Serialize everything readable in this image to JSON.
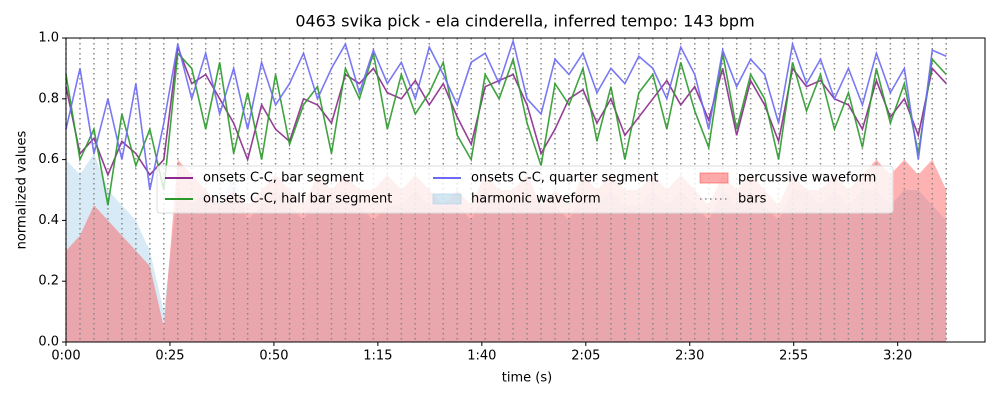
{
  "chart_data": {
    "type": "line",
    "title": "0463 svika pick - ela cinderella, inferred tempo: 143 bpm",
    "xlabel": "time (s)",
    "ylabel": "normalized values",
    "xlim": [
      0,
      221
    ],
    "ylim": [
      0,
      1
    ],
    "xticks": [
      {
        "value": 0,
        "label": "0:00"
      },
      {
        "value": 25,
        "label": "0:25"
      },
      {
        "value": 50,
        "label": "0:50"
      },
      {
        "value": 75,
        "label": "1:15"
      },
      {
        "value": 100,
        "label": "1:40"
      },
      {
        "value": 125,
        "label": "2:05"
      },
      {
        "value": 150,
        "label": "2:30"
      },
      {
        "value": 175,
        "label": "2:55"
      },
      {
        "value": 200,
        "label": "3:20"
      }
    ],
    "yticks": [
      {
        "value": 0,
        "label": "0.0"
      },
      0.2,
      0.4,
      0.6,
      0.8,
      {
        "value": 1,
        "label": "1.0"
      }
    ],
    "x": [
      0,
      3.36,
      6.72,
      10.08,
      13.44,
      16.8,
      20.16,
      23.52,
      26.88,
      30.24,
      33.6,
      36.96,
      40.32,
      43.68,
      47.04,
      50.4,
      53.76,
      57.12,
      60.48,
      63.84,
      67.2,
      70.56,
      73.92,
      77.28,
      80.64,
      84,
      87.36,
      90.72,
      94.08,
      97.44,
      100.8,
      104.16,
      107.52,
      110.88,
      114.24,
      117.6,
      120.96,
      124.32,
      127.68,
      131.04,
      134.4,
      137.76,
      141.12,
      144.48,
      147.84,
      151.2,
      154.56,
      157.92,
      161.28,
      164.64,
      168,
      171.36,
      174.72,
      178.08,
      181.44,
      184.8,
      188.16,
      191.52,
      194.88,
      198.24,
      201.6,
      204.96,
      208.32,
      211.68
    ],
    "series": [
      {
        "name": "onsets C-C, bar segment",
        "type": "line",
        "color": "#8b2a8b",
        "values": [
          0.84,
          0.62,
          0.67,
          0.55,
          0.66,
          0.62,
          0.55,
          0.6,
          0.97,
          0.85,
          0.88,
          0.8,
          0.72,
          0.6,
          0.78,
          0.7,
          0.66,
          0.8,
          0.78,
          0.72,
          0.88,
          0.85,
          0.9,
          0.82,
          0.8,
          0.86,
          0.78,
          0.85,
          0.74,
          0.65,
          0.84,
          0.86,
          0.88,
          0.78,
          0.62,
          0.7,
          0.8,
          0.83,
          0.72,
          0.8,
          0.68,
          0.74,
          0.8,
          0.86,
          0.78,
          0.84,
          0.73,
          0.9,
          0.68,
          0.86,
          0.78,
          0.66,
          0.9,
          0.84,
          0.86,
          0.8,
          0.78,
          0.7,
          0.86,
          0.74,
          0.8,
          0.68,
          0.9,
          0.85
        ]
      },
      {
        "name": "onsets C-C, half bar segment",
        "type": "line",
        "color": "#2a9a2a",
        "values": [
          0.88,
          0.6,
          0.7,
          0.45,
          0.75,
          0.58,
          0.7,
          0.5,
          0.95,
          0.9,
          0.7,
          0.92,
          0.62,
          0.82,
          0.6,
          0.88,
          0.65,
          0.78,
          0.84,
          0.62,
          0.9,
          0.8,
          0.95,
          0.7,
          0.88,
          0.75,
          0.82,
          0.92,
          0.68,
          0.6,
          0.88,
          0.8,
          0.93,
          0.72,
          0.58,
          0.85,
          0.78,
          0.9,
          0.66,
          0.84,
          0.6,
          0.82,
          0.88,
          0.7,
          0.92,
          0.76,
          0.64,
          0.95,
          0.7,
          0.88,
          0.8,
          0.6,
          0.92,
          0.76,
          0.88,
          0.7,
          0.82,
          0.64,
          0.9,
          0.72,
          0.85,
          0.62,
          0.93,
          0.88
        ]
      },
      {
        "name": "onsets C-C, quarter segment",
        "type": "line",
        "color": "#6a6af5",
        "values": [
          0.7,
          0.9,
          0.62,
          0.8,
          0.6,
          0.85,
          0.5,
          0.72,
          0.98,
          0.8,
          0.95,
          0.75,
          0.9,
          0.7,
          0.92,
          0.78,
          0.85,
          0.95,
          0.8,
          0.9,
          0.98,
          0.82,
          0.96,
          0.85,
          0.92,
          0.8,
          0.97,
          0.88,
          0.78,
          0.92,
          0.95,
          0.85,
          0.99,
          0.8,
          0.75,
          0.93,
          0.88,
          0.95,
          0.82,
          0.9,
          0.85,
          0.94,
          0.9,
          0.8,
          0.97,
          0.88,
          0.7,
          0.96,
          0.84,
          0.93,
          0.88,
          0.72,
          0.98,
          0.85,
          0.93,
          0.8,
          0.9,
          0.78,
          0.95,
          0.82,
          0.9,
          0.6,
          0.96,
          0.94
        ]
      },
      {
        "name": "harmonic waveform",
        "type": "area",
        "color": "#a8d0e8",
        "values": [
          0.6,
          0.55,
          0.62,
          0.5,
          0.45,
          0.4,
          0.3,
          0.1,
          0.5,
          0.45,
          0.5,
          0.45,
          0.55,
          0.4,
          0.45,
          0.5,
          0.45,
          0.4,
          0.5,
          0.45,
          0.5,
          0.45,
          0.4,
          0.45,
          0.45,
          0.5,
          0.45,
          0.45,
          0.45,
          0.4,
          0.5,
          0.45,
          0.45,
          0.5,
          0.45,
          0.45,
          0.4,
          0.5,
          0.45,
          0.5,
          0.45,
          0.45,
          0.5,
          0.45,
          0.5,
          0.45,
          0.4,
          0.5,
          0.45,
          0.5,
          0.45,
          0.4,
          0.5,
          0.5,
          0.45,
          0.5,
          0.45,
          0.5,
          0.5,
          0.45,
          0.5,
          0.5,
          0.45,
          0.4
        ]
      },
      {
        "name": "percussive waveform",
        "type": "area",
        "color": "#ff5555",
        "values": [
          0.3,
          0.35,
          0.45,
          0.4,
          0.35,
          0.3,
          0.25,
          0.05,
          0.6,
          0.55,
          0.5,
          0.45,
          0.5,
          0.45,
          0.5,
          0.55,
          0.5,
          0.45,
          0.55,
          0.5,
          0.55,
          0.5,
          0.5,
          0.55,
          0.5,
          0.55,
          0.5,
          0.45,
          0.5,
          0.45,
          0.55,
          0.5,
          0.5,
          0.55,
          0.45,
          0.5,
          0.45,
          0.55,
          0.5,
          0.55,
          0.5,
          0.5,
          0.55,
          0.5,
          0.55,
          0.5,
          0.45,
          0.55,
          0.5,
          0.55,
          0.5,
          0.45,
          0.55,
          0.5,
          0.5,
          0.55,
          0.5,
          0.55,
          0.6,
          0.55,
          0.6,
          0.55,
          0.6,
          0.5
        ]
      }
    ],
    "bars": {
      "name": "bars",
      "color": "#888888"
    }
  }
}
